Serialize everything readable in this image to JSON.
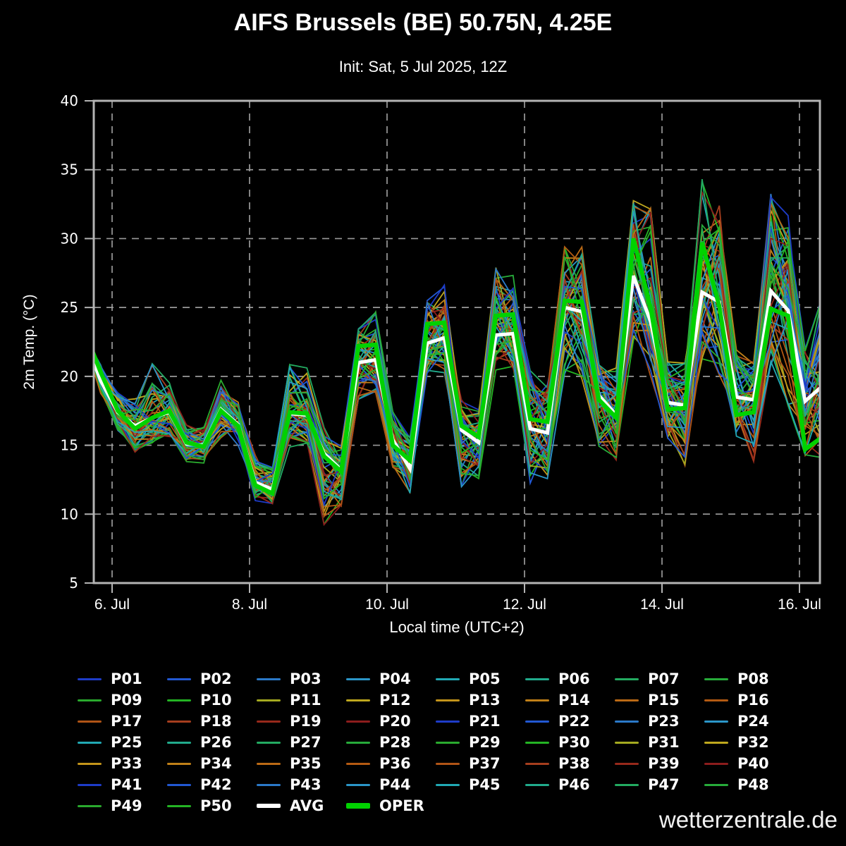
{
  "page": {
    "title": "AIFS Brussels (BE) 50.75N, 4.25E",
    "subtitle": "Init: Sat, 5 Jul 2025, 12Z",
    "watermark": "wetterzentrale.de"
  },
  "chart_data": {
    "type": "line",
    "title": "AIFS Brussels (BE) 50.75N, 4.25E",
    "subtitle": "Init: Sat, 5 Jul 2025, 12Z",
    "xlabel": "Local time (UTC+2)",
    "ylabel": "2m Temp. (°C)",
    "ylim": [
      5,
      40
    ],
    "yticks": [
      5,
      10,
      15,
      20,
      25,
      30,
      35,
      40
    ],
    "grid": "dashed",
    "legend_position": "bottom",
    "xticks": [
      "6. Jul",
      "8. Jul",
      "10. Jul",
      "12. Jul",
      "14. Jul",
      "16. Jul"
    ],
    "xtick_day_index": [
      0,
      2,
      4,
      6,
      8,
      10
    ],
    "time": {
      "step_hours": 6,
      "n_points": 44,
      "t0_hours_before_6jul_00": 10,
      "note": "6-hourly points from 5 Jul 14:00 to 16 Jul 08:00 local (UTC+2)"
    },
    "colors": {
      "background": "#000000",
      "frame": "#b4b4b4",
      "grid": "#9a9a9a",
      "text": "#ffffff",
      "avg": "#ffffff",
      "oper": "#00d200"
    },
    "series": {
      "avg": {
        "label": "AVG",
        "color": "#ffffff",
        "values": [
          23.0,
          19.7,
          17.4,
          16.4,
          17.0,
          17.4,
          15.1,
          15.0,
          17.6,
          16.5,
          12.3,
          11.8,
          17.3,
          17.2,
          14.4,
          13.2,
          21.0,
          21.2,
          15.4,
          13.3,
          22.4,
          22.8,
          16.1,
          15.2,
          23.0,
          23.1,
          16.2,
          15.9,
          25.0,
          24.7,
          18.6,
          17.2,
          27.3,
          24.0,
          18.1,
          17.9,
          26.1,
          25.4,
          18.5,
          18.3,
          26.2,
          24.8,
          18.2,
          19.3
        ]
      },
      "oper": {
        "label": "OPER",
        "color": "#00d200",
        "values": [
          23.5,
          20.3,
          17.5,
          16.2,
          17.0,
          17.5,
          15.2,
          14.9,
          17.5,
          16.4,
          12.1,
          11.5,
          17.4,
          17.3,
          14.2,
          13.1,
          22.2,
          22.3,
          15.0,
          13.9,
          23.8,
          23.9,
          16.4,
          15.6,
          24.4,
          24.5,
          16.9,
          16.7,
          25.5,
          25.4,
          18.3,
          17.0,
          30.0,
          25.0,
          17.6,
          17.7,
          29.7,
          25.1,
          17.2,
          17.4,
          24.9,
          24.4,
          14.7,
          15.6
        ]
      },
      "ensemble_envelope": {
        "min": [
          21.5,
          18.6,
          15.8,
          14.6,
          15.2,
          15.6,
          13.9,
          13.7,
          15.6,
          15.0,
          10.9,
          10.3,
          14.8,
          15.2,
          8.7,
          10.5,
          18.4,
          18.9,
          13.4,
          11.4,
          19.8,
          20.3,
          12.0,
          12.6,
          20.4,
          19.2,
          12.2,
          12.5,
          20.2,
          19.8,
          14.9,
          13.9,
          21.8,
          19.9,
          15.4,
          13.4,
          21.2,
          19.8,
          14.9,
          13.2,
          20.8,
          17.8,
          14.2,
          14.0
        ],
        "max": [
          24.0,
          21.6,
          19.0,
          18.3,
          21.0,
          19.6,
          16.6,
          16.4,
          19.7,
          18.2,
          14.2,
          13.6,
          20.9,
          20.8,
          16.2,
          15.2,
          23.6,
          24.7,
          17.6,
          15.6,
          26.1,
          26.7,
          18.6,
          17.6,
          28.0,
          27.5,
          20.4,
          19.6,
          29.6,
          29.4,
          21.0,
          20.6,
          32.8,
          32.5,
          21.2,
          21.0,
          34.5,
          33.0,
          22.0,
          21.0,
          34.0,
          32.0,
          22.0,
          26.0
        ]
      },
      "members": {
        "labels": [
          "P01",
          "P02",
          "P03",
          "P04",
          "P05",
          "P06",
          "P07",
          "P08",
          "P09",
          "P10",
          "P11",
          "P12",
          "P13",
          "P14",
          "P15",
          "P16",
          "P17",
          "P18",
          "P19",
          "P20",
          "P21",
          "P22",
          "P23",
          "P24",
          "P25",
          "P26",
          "P27",
          "P28",
          "P29",
          "P30",
          "P31",
          "P32",
          "P33",
          "P34",
          "P35",
          "P36",
          "P37",
          "P38",
          "P39",
          "P40",
          "P41",
          "P42",
          "P43",
          "P44",
          "P45",
          "P46",
          "P47",
          "P48",
          "P49",
          "P50"
        ],
        "palette": [
          "#1e3cc8",
          "#2258d2",
          "#2b79c8",
          "#2b96c8",
          "#21a9b4",
          "#21ab8c",
          "#23ab61",
          "#27ab3a",
          "#2aaa2e",
          "#24b424",
          "#a4aa20",
          "#bfa81e",
          "#c3941a",
          "#c08018",
          "#bb6a15",
          "#b45a12",
          "#b05416",
          "#a63e1e",
          "#97291b",
          "#8c1d1d"
        ],
        "color_rule": "palette[memberIndex % 20]"
      }
    }
  }
}
